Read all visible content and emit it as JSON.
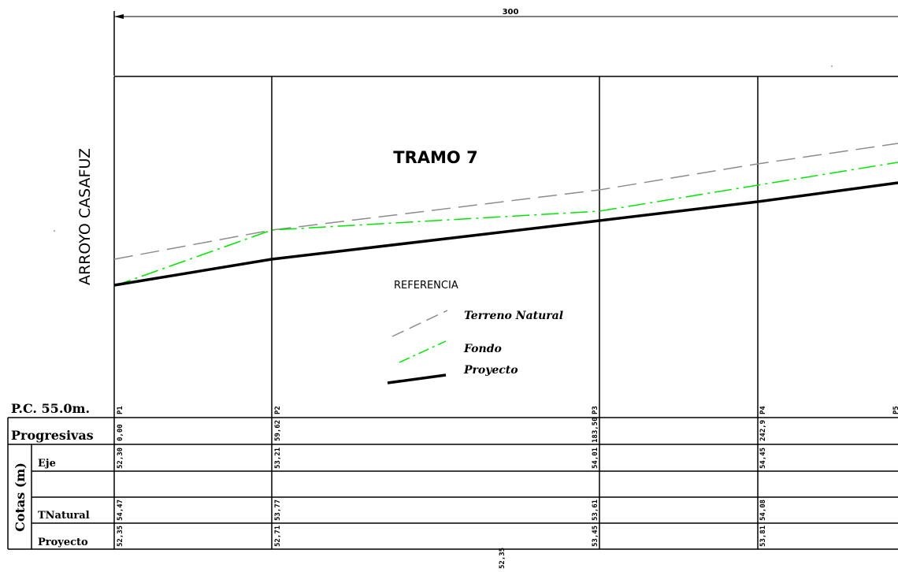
{
  "drawing": {
    "dimension_label": "300",
    "title": "TRAMO 7",
    "river_label": "ARROYO CASAFUZ",
    "legend": {
      "heading": "REFERENCIA",
      "items": [
        {
          "label": "Terreno Natural",
          "color": "#8c8c8c",
          "style": "dashed"
        },
        {
          "label": "Fondo",
          "color": "#00e600",
          "style": "dash-dot"
        },
        {
          "label": "Proyecto",
          "color": "#000000",
          "style": "solid"
        }
      ]
    },
    "table": {
      "pc_label": "P.C. 55.0m.",
      "progresivas_label": "Progresivas",
      "cotas_label": "Cotas (m)",
      "rows": {
        "eje": "Eje",
        "tnatural": "TNatural",
        "proyecto": "Proyecto"
      },
      "stray_label": "52,35"
    },
    "stations": [
      {
        "name": "P1",
        "progresiva": "0,00",
        "eje": "52,30",
        "tnatural": "54,47",
        "proyecto": "52,35",
        "fondo_cota": 52.35
      },
      {
        "name": "P2",
        "progresiva": "59,62",
        "eje": "53,21",
        "tnatural": "53,77",
        "proyecto": "52,71",
        "fondo_cota": 53.21
      },
      {
        "name": "P3",
        "progresiva": "183,50",
        "eje": "54,01",
        "tnatural": "53,61",
        "proyecto": "53,45",
        "fondo_cota": 53.55
      },
      {
        "name": "P4",
        "progresiva": "242,9",
        "eje": "54,45",
        "tnatural": "54,08",
        "proyecto": "53,81",
        "fondo_cota": 54.02
      }
    ]
  }
}
